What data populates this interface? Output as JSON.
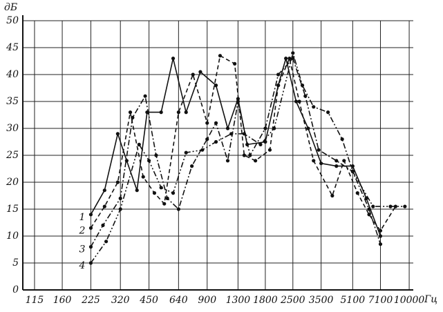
{
  "chart_data": {
    "type": "line",
    "y_label": "дБ",
    "x_label": "Гц",
    "log_x": true,
    "grid": true,
    "xlim": [
      100,
      10500
    ],
    "ylim": [
      0,
      50
    ],
    "xticks": [
      115,
      160,
      225,
      320,
      450,
      640,
      900,
      1300,
      1800,
      2500,
      3500,
      5100,
      7100,
      10000
    ],
    "yticks": [
      0,
      5,
      10,
      15,
      20,
      25,
      30,
      35,
      40,
      45,
      50
    ],
    "series": [
      {
        "name": "1",
        "color": "#111111",
        "dash": "solid",
        "x": [
          225,
          265,
          310,
          345,
          390,
          440,
          520,
          600,
          700,
          830,
          1000,
          1150,
          1300,
          1450,
          1800,
          2100,
          2300,
          2600,
          3000,
          3500,
          4200,
          5100,
          6000,
          7100
        ],
        "values": [
          14,
          18.5,
          29,
          24,
          18.5,
          33,
          33,
          43,
          33,
          40.5,
          38,
          30,
          35.5,
          27,
          27.5,
          38,
          43,
          35,
          30,
          23.5,
          23,
          23,
          17,
          10
        ]
      },
      {
        "name": "2",
        "color": "#111111",
        "dash": "dashed",
        "x": [
          225,
          265,
          310,
          360,
          420,
          480,
          540,
          640,
          760,
          900,
          1050,
          1250,
          1400,
          1600,
          1900,
          2100,
          2400,
          2700,
          3200,
          4000,
          4600,
          5400,
          6200,
          7100,
          8500
        ],
        "values": [
          11.5,
          15.5,
          20,
          33,
          21,
          18,
          16,
          33,
          40,
          31,
          43.5,
          42,
          25,
          24,
          26,
          38,
          43,
          35,
          24,
          17.5,
          24,
          18,
          14,
          11,
          15.5
        ]
      },
      {
        "name": "3",
        "color": "#111111",
        "dash": "dashdot",
        "x": [
          225,
          260,
          320,
          370,
          430,
          490,
          560,
          640,
          750,
          900,
          1000,
          1150,
          1300,
          1500,
          1800,
          2100,
          2500,
          2900,
          3400,
          4200,
          5100,
          6200,
          7100
        ],
        "values": [
          8,
          12,
          17,
          32,
          36,
          25,
          17,
          15,
          23,
          28,
          31,
          24,
          35,
          25,
          30,
          40,
          43,
          36,
          26,
          24,
          22,
          15,
          8.5
        ]
      },
      {
        "name": "4",
        "color": "#111111",
        "dash": "dashdotdot",
        "x": [
          225,
          270,
          320,
          400,
          450,
          520,
          600,
          700,
          850,
          1000,
          1200,
          1400,
          1700,
          2000,
          2500,
          2800,
          3200,
          3800,
          4500,
          5100,
          6500,
          8000,
          9500
        ],
        "values": [
          5,
          9,
          15,
          27,
          24,
          19,
          18,
          25.5,
          26,
          27.5,
          29,
          29,
          27,
          30,
          44,
          38,
          34,
          33,
          28,
          22,
          15.5,
          15.5,
          15.5
        ]
      }
    ]
  }
}
